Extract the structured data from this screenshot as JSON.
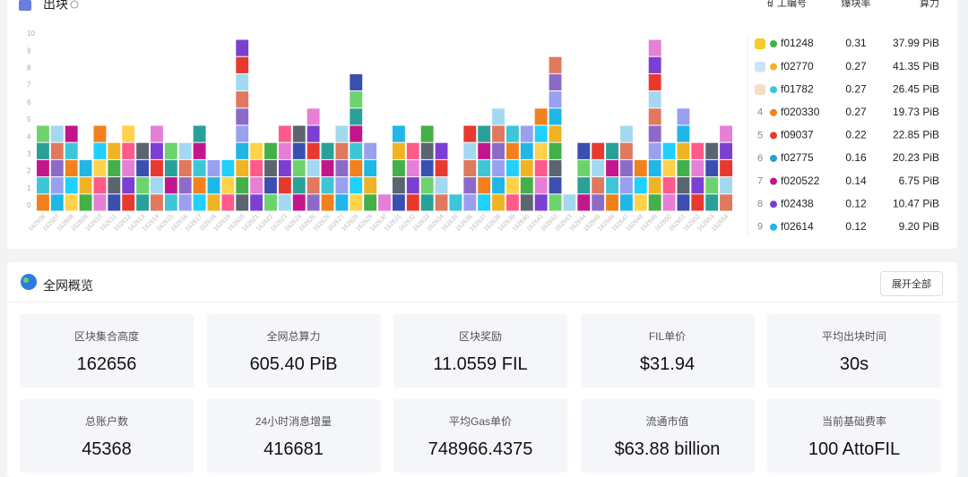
{
  "blocks": {
    "title": "出块",
    "chart_data": {
      "type": "bar",
      "categories": [
        "162606",
        "162607",
        "162608",
        "162609",
        "162610",
        "162611",
        "162612",
        "162613",
        "162614",
        "162615",
        "162616",
        "162617",
        "162618",
        "162619",
        "162620",
        "162621",
        "162622",
        "162623",
        "162624",
        "162625",
        "162626",
        "162627",
        "162628",
        "162629",
        "162630",
        "162631",
        "162632",
        "162633",
        "162634",
        "162635",
        "162636",
        "162637",
        "162638",
        "162639",
        "162640",
        "162641",
        "162642",
        "162643",
        "162644",
        "162645",
        "162646",
        "162647",
        "162648",
        "162649",
        "162650",
        "162651",
        "162652",
        "162653",
        "162654"
      ],
      "values": [
        5,
        5,
        5,
        3,
        5,
        4,
        5,
        4,
        5,
        4,
        4,
        5,
        3,
        3,
        10,
        4,
        4,
        5,
        5,
        6,
        4,
        5,
        8,
        4,
        1,
        5,
        4,
        5,
        4,
        1,
        5,
        5,
        6,
        5,
        5,
        6,
        9,
        1,
        4,
        4,
        4,
        5,
        3,
        10,
        4,
        6,
        4,
        4,
        5
      ],
      "ylim": [
        0,
        10
      ],
      "yticks": [
        0,
        1,
        2,
        3,
        4,
        5,
        6,
        7,
        8,
        9,
        10
      ]
    },
    "table": {
      "headers": [
        "矿工编号",
        "爆块率",
        "算力"
      ],
      "rows": [
        {
          "rank": "1",
          "id": "f01248",
          "color": "#43b049",
          "rate": "0.31",
          "power": "37.99 PiB"
        },
        {
          "rank": "2",
          "id": "f02770",
          "color": "#f0b323",
          "rate": "0.27",
          "power": "41.35 PiB"
        },
        {
          "rank": "3",
          "id": "f01782",
          "color": "#3cc6d8",
          "rate": "0.27",
          "power": "26.45 PiB"
        },
        {
          "rank": "4",
          "id": "f020330",
          "color": "#f2811d",
          "rate": "0.27",
          "power": "19.73 PiB"
        },
        {
          "rank": "5",
          "id": "f09037",
          "color": "#e8392f",
          "rate": "0.22",
          "power": "22.85 PiB"
        },
        {
          "rank": "6",
          "id": "f02775",
          "color": "#2a9fd6",
          "rate": "0.16",
          "power": "20.23 PiB"
        },
        {
          "rank": "7",
          "id": "f020522",
          "color": "#c3168c",
          "rate": "0.14",
          "power": "6.75 PiB"
        },
        {
          "rank": "8",
          "id": "f02438",
          "color": "#7b3fd1",
          "rate": "0.12",
          "power": "10.47 PiB"
        },
        {
          "rank": "9",
          "id": "f02614",
          "color": "#1fb7e6",
          "rate": "0.12",
          "power": "9.20 PiB"
        }
      ]
    }
  },
  "overview": {
    "title": "全网概览",
    "button": "展开全部",
    "cards": [
      {
        "label": "区块集合高度",
        "value": "162656"
      },
      {
        "label": "全网总算力",
        "value": "605.40 PiB"
      },
      {
        "label": "区块奖励",
        "value": "11.0559 FIL"
      },
      {
        "label": "FIL单价",
        "value": "$31.94"
      },
      {
        "label": "平均出块时间",
        "value": "30s"
      },
      {
        "label": "总账户数",
        "value": "45368"
      },
      {
        "label": "24小时消息增量",
        "value": "416681"
      },
      {
        "label": "平均Gas单价",
        "value": "748966.4375"
      },
      {
        "label": "流通市值",
        "value": "$63.88 billion"
      },
      {
        "label": "当前基础费率",
        "value": "100 AttoFIL"
      }
    ]
  }
}
